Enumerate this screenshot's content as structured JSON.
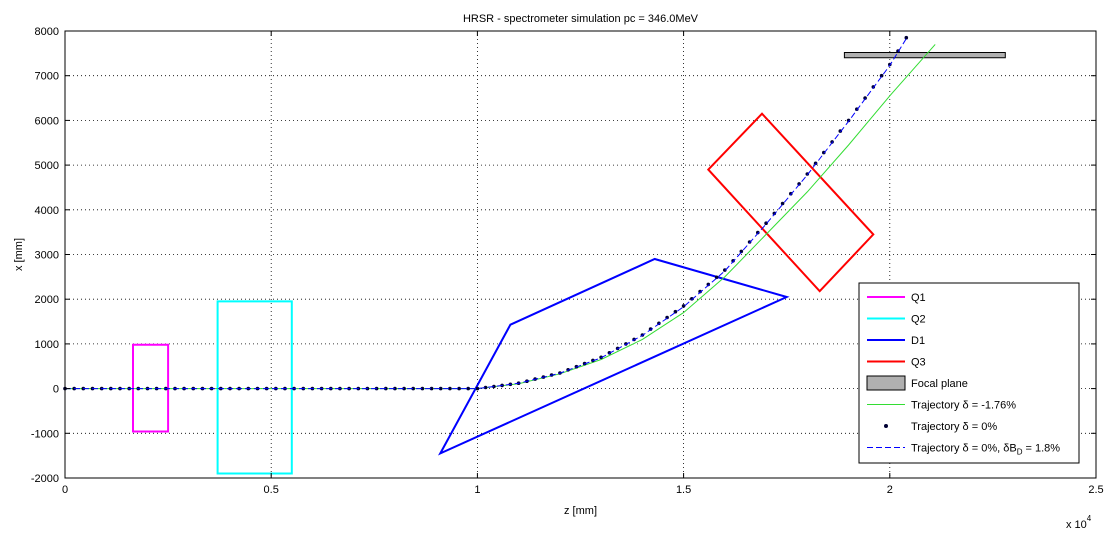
{
  "chart_data": {
    "type": "line",
    "title": "HRSR - spectrometer simulation pc = 346.0MeV",
    "xlabel": "z [mm]",
    "ylabel": "x [mm]",
    "x_exponent_label": "x 10",
    "x_exponent_power": "4",
    "xlim": [
      0,
      25000
    ],
    "ylim": [
      -2000,
      8000
    ],
    "x_ticks": [
      0,
      5000,
      10000,
      15000,
      20000,
      25000
    ],
    "x_tick_labels": [
      "0",
      "0.5",
      "1",
      "1.5",
      "2",
      "2.5"
    ],
    "y_ticks": [
      -2000,
      -1000,
      0,
      1000,
      2000,
      3000,
      4000,
      5000,
      6000,
      7000,
      8000
    ],
    "y_tick_labels": [
      "-2000",
      "-1000",
      "0",
      "1000",
      "2000",
      "3000",
      "4000",
      "5000",
      "6000",
      "7000",
      "8000"
    ],
    "grid": true,
    "legend_position": "bottom-right",
    "elements": [
      {
        "name": "Q1",
        "color": "#ff00ff",
        "kind": "outline",
        "points": [
          [
            1650,
            980
          ],
          [
            2500,
            980
          ],
          [
            2500,
            -960
          ],
          [
            1650,
            -960
          ]
        ]
      },
      {
        "name": "Q2",
        "color": "#00ffff",
        "kind": "outline",
        "points": [
          [
            3700,
            1950
          ],
          [
            5500,
            1950
          ],
          [
            5500,
            -1900
          ],
          [
            3700,
            -1900
          ]
        ]
      },
      {
        "name": "D1",
        "color": "#0000ff",
        "kind": "outline",
        "points": [
          [
            9100,
            -1450
          ],
          [
            10800,
            1430
          ],
          [
            14300,
            2900
          ],
          [
            17500,
            2050
          ]
        ]
      },
      {
        "name": "Q3",
        "color": "#ff0000",
        "kind": "outline",
        "points": [
          [
            15600,
            4900
          ],
          [
            16900,
            6150
          ],
          [
            19600,
            3450
          ],
          [
            18300,
            2180
          ]
        ]
      },
      {
        "name": "Focal plane",
        "color": "#b0b0b0",
        "kind": "patch",
        "points": [
          [
            18900,
            7520
          ],
          [
            22800,
            7520
          ],
          [
            22800,
            7400
          ],
          [
            18900,
            7400
          ]
        ]
      }
    ],
    "series": [
      {
        "name": "Trajectory δ = -1.76%",
        "color": "#33dd33",
        "style": "solid",
        "x": [
          0,
          10000,
          11000,
          12000,
          13000,
          14000,
          15000,
          16000,
          17000,
          18000,
          19000,
          20000,
          21100
        ],
        "y": [
          0,
          0,
          110,
          330,
          650,
          1100,
          1700,
          2500,
          3450,
          4400,
          5450,
          6550,
          7700
        ]
      },
      {
        "name": "Trajectory δ = 0%",
        "color": "#000033",
        "style": "dots",
        "x": [
          0,
          10000,
          11000,
          12000,
          13000,
          14000,
          15000,
          16000,
          17000,
          18000,
          19000,
          20000,
          20400
        ],
        "y": [
          0,
          0,
          120,
          350,
          700,
          1200,
          1850,
          2650,
          3700,
          4800,
          6000,
          7250,
          7850
        ]
      },
      {
        "name": "Trajectory δ = 0%, δB",
        "name_subscript": "D",
        "name_suffix": " = 1.8%",
        "color": "#0000ff",
        "style": "dashed",
        "x": [
          0,
          10000,
          11000,
          12000,
          13000,
          14000,
          15000,
          16000,
          17000,
          18000,
          19000,
          20000,
          20400
        ],
        "y": [
          0,
          0,
          118,
          345,
          690,
          1190,
          1830,
          2630,
          3680,
          4780,
          5980,
          7230,
          7830
        ]
      }
    ]
  }
}
